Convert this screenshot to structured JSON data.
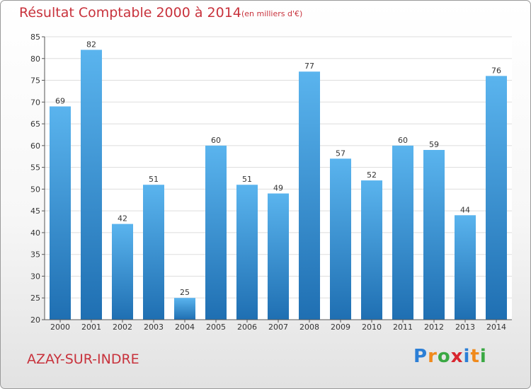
{
  "title": "Résultat Comptable 2000 à 2014",
  "subtitle": "(en milliers d'€)",
  "commune": "AZAY-SUR-INDRE",
  "logo": {
    "letters": [
      "P",
      "r",
      "o",
      "x",
      "i",
      "t",
      "i"
    ],
    "colors": [
      "#2c7fd6",
      "#f08a1c",
      "#3aa843",
      "#d8262f",
      "#2c7fd6",
      "#f08a1c",
      "#3aa843"
    ]
  },
  "colors": {
    "bar_top": "#5ab4ee",
    "bar_bottom": "#1f6fb2",
    "accent": "#c8323c",
    "grid": "#dddddd"
  },
  "chart_data": {
    "type": "bar",
    "title": "Résultat Comptable 2000 à 2014",
    "subtitle": "(en milliers d'€)",
    "categories": [
      "2000",
      "2001",
      "2002",
      "2003",
      "2004",
      "2005",
      "2006",
      "2007",
      "2008",
      "2009",
      "2010",
      "2011",
      "2012",
      "2013",
      "2014"
    ],
    "values": [
      69,
      82,
      42,
      51,
      25,
      60,
      51,
      49,
      77,
      57,
      52,
      60,
      59,
      44,
      76
    ],
    "ylim": [
      20,
      85
    ],
    "yticks": [
      20,
      25,
      30,
      35,
      40,
      45,
      50,
      55,
      60,
      65,
      70,
      75,
      80,
      85
    ],
    "grid": true,
    "data_labels": true
  }
}
